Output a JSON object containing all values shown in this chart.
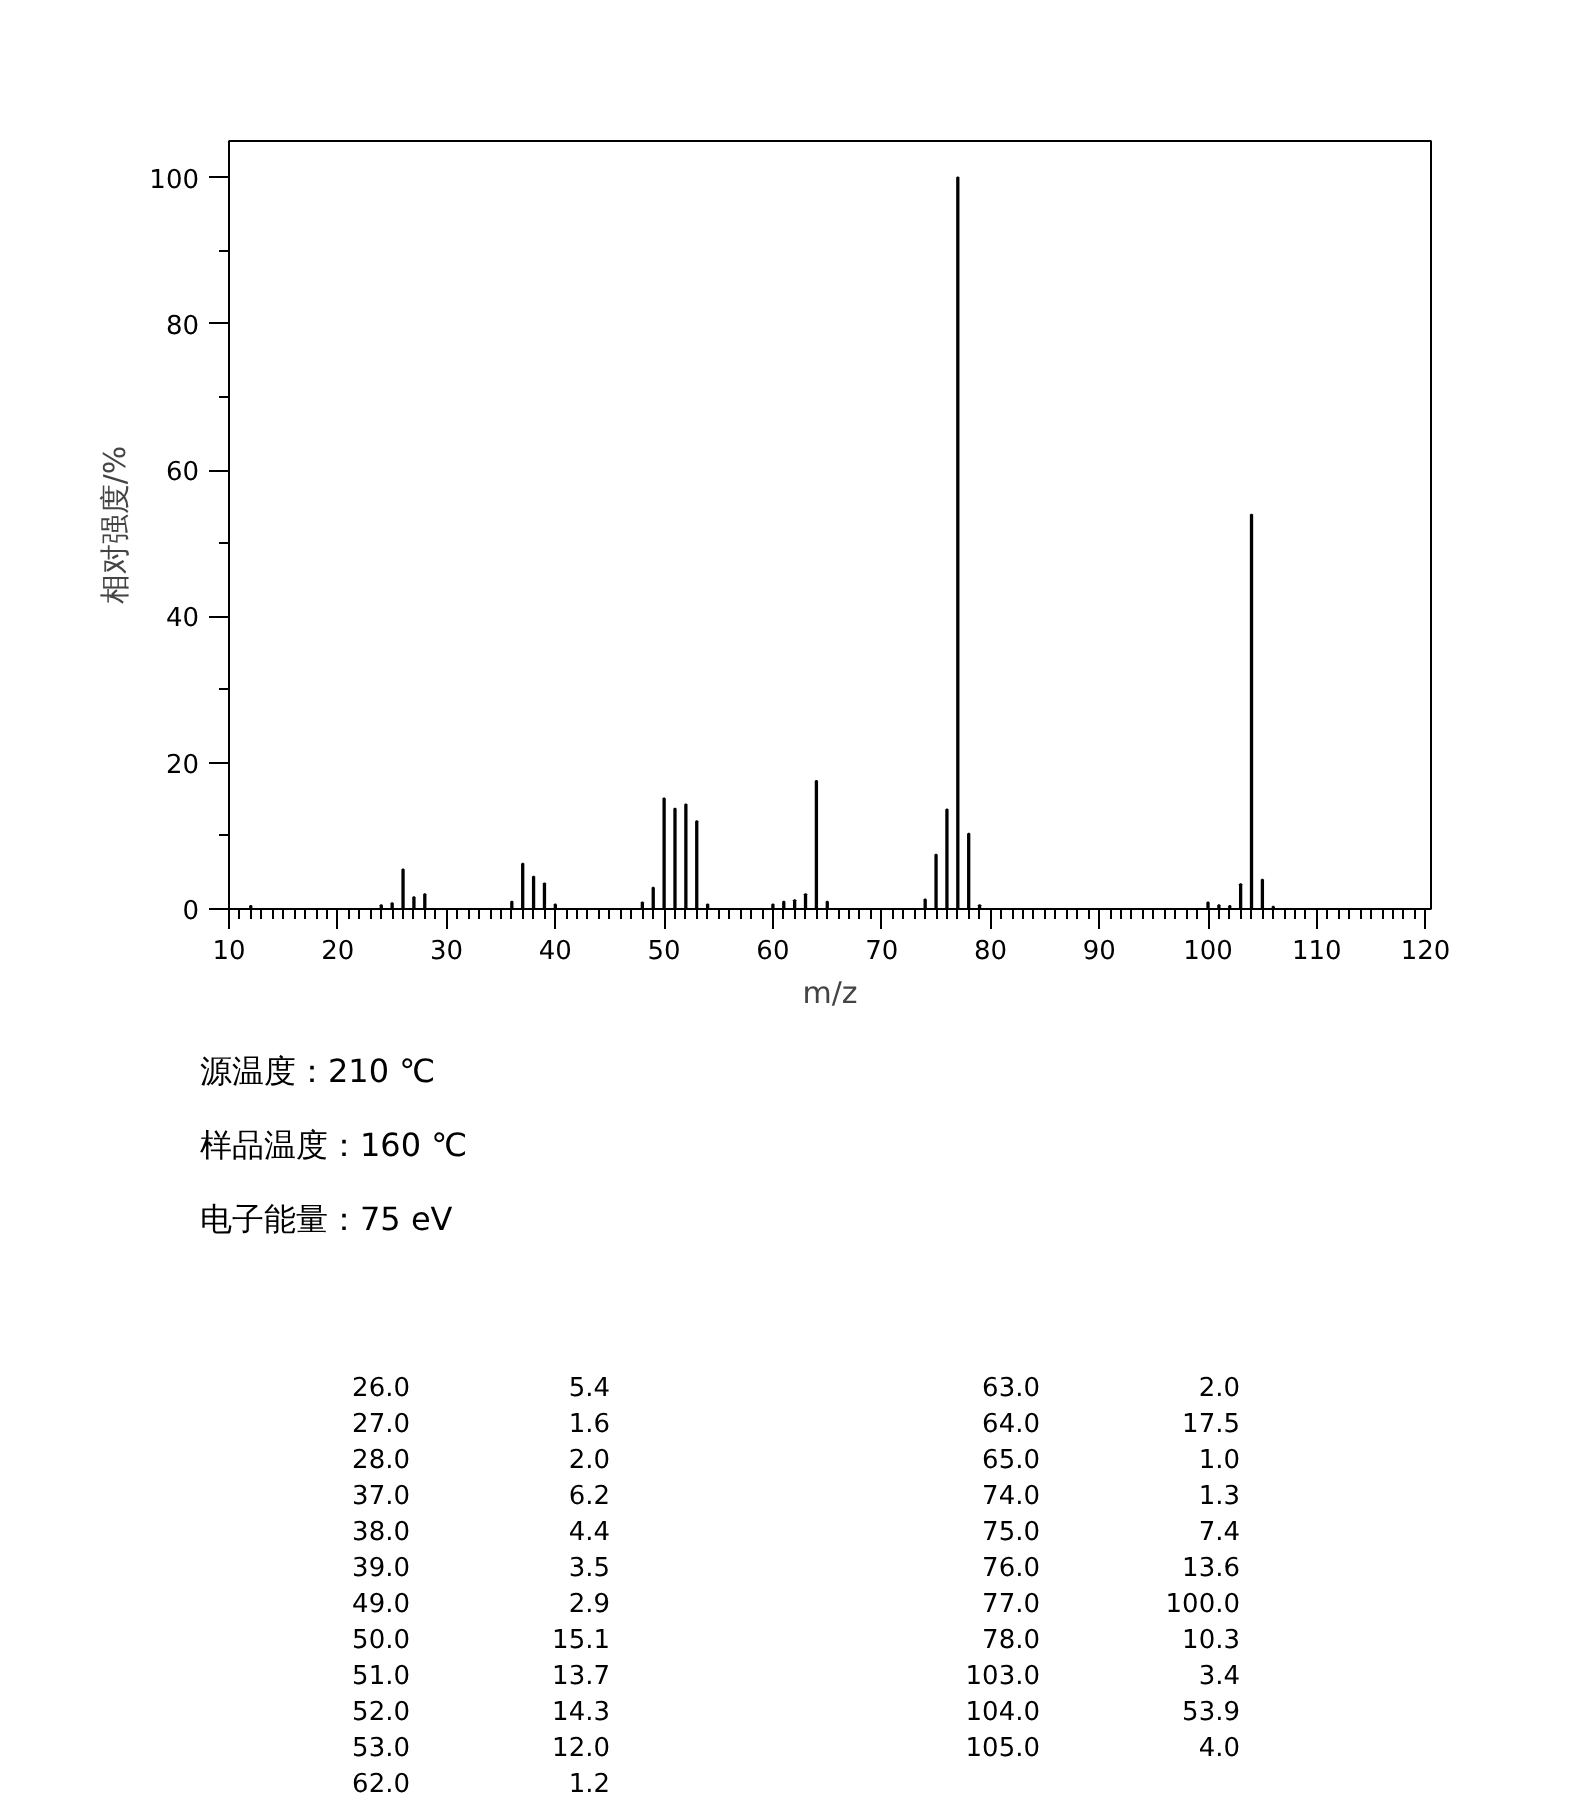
{
  "chart_data": [
    {
      "type": "bar",
      "xlabel": "m/z",
      "ylabel": "相对强度/%",
      "xlim": [
        10,
        120.5
      ],
      "ylim": [
        0,
        105
      ],
      "xticks": [
        10,
        20,
        30,
        40,
        50,
        60,
        70,
        80,
        90,
        100,
        110,
        120
      ],
      "yticks": [
        0,
        20,
        40,
        60,
        80,
        100
      ],
      "grid": false,
      "series": [
        {
          "color": "#000000",
          "x": [
            12,
            24,
            25,
            26,
            27,
            28,
            36,
            37,
            38,
            39,
            40,
            48,
            49,
            50,
            51,
            52,
            53,
            54,
            60,
            61,
            62,
            63,
            64,
            65,
            74,
            75,
            76,
            77,
            78,
            79,
            100,
            101,
            102,
            103,
            104,
            105,
            106
          ],
          "values": [
            0.4,
            0.5,
            0.8,
            5.4,
            1.6,
            2.0,
            1.0,
            6.2,
            4.4,
            3.5,
            0.6,
            0.9,
            2.9,
            15.1,
            13.7,
            14.3,
            12.0,
            0.6,
            0.6,
            1.0,
            1.2,
            2.0,
            17.5,
            1.0,
            1.3,
            7.4,
            13.6,
            100,
            10.3,
            0.5,
            0.9,
            0.5,
            0.4,
            3.4,
            53.9,
            4.0,
            0.3
          ]
        }
      ],
      "annotations": [
        "源温度：210 ℃",
        "样品温度：160 ℃",
        "电子能量：75 eV"
      ]
    },
    {
      "type": "other",
      "annotations": [
        "26.0",
        "5.4",
        "27.0",
        "1.6",
        "28.0",
        "2.0",
        "37.0",
        "6.2",
        "38.0",
        "4.4",
        "39.0",
        "3.5",
        "49.0",
        "2.9",
        "50.0",
        "15.1",
        "51.0",
        "13.7",
        "52.0",
        "14.3",
        "53.0",
        "12.0",
        "62.0",
        "1.2",
        "63.0",
        "2.0",
        "64.0",
        "17.5",
        "65.0",
        "1.0",
        "74.0",
        "1.3",
        "75.0",
        "7.4",
        "76.0",
        "13.6",
        "77.0",
        "100.0",
        "78.0",
        "10.3",
        "103.0",
        "3.4",
        "104.0",
        "53.9",
        "105.0",
        "4.0"
      ]
    }
  ]
}
